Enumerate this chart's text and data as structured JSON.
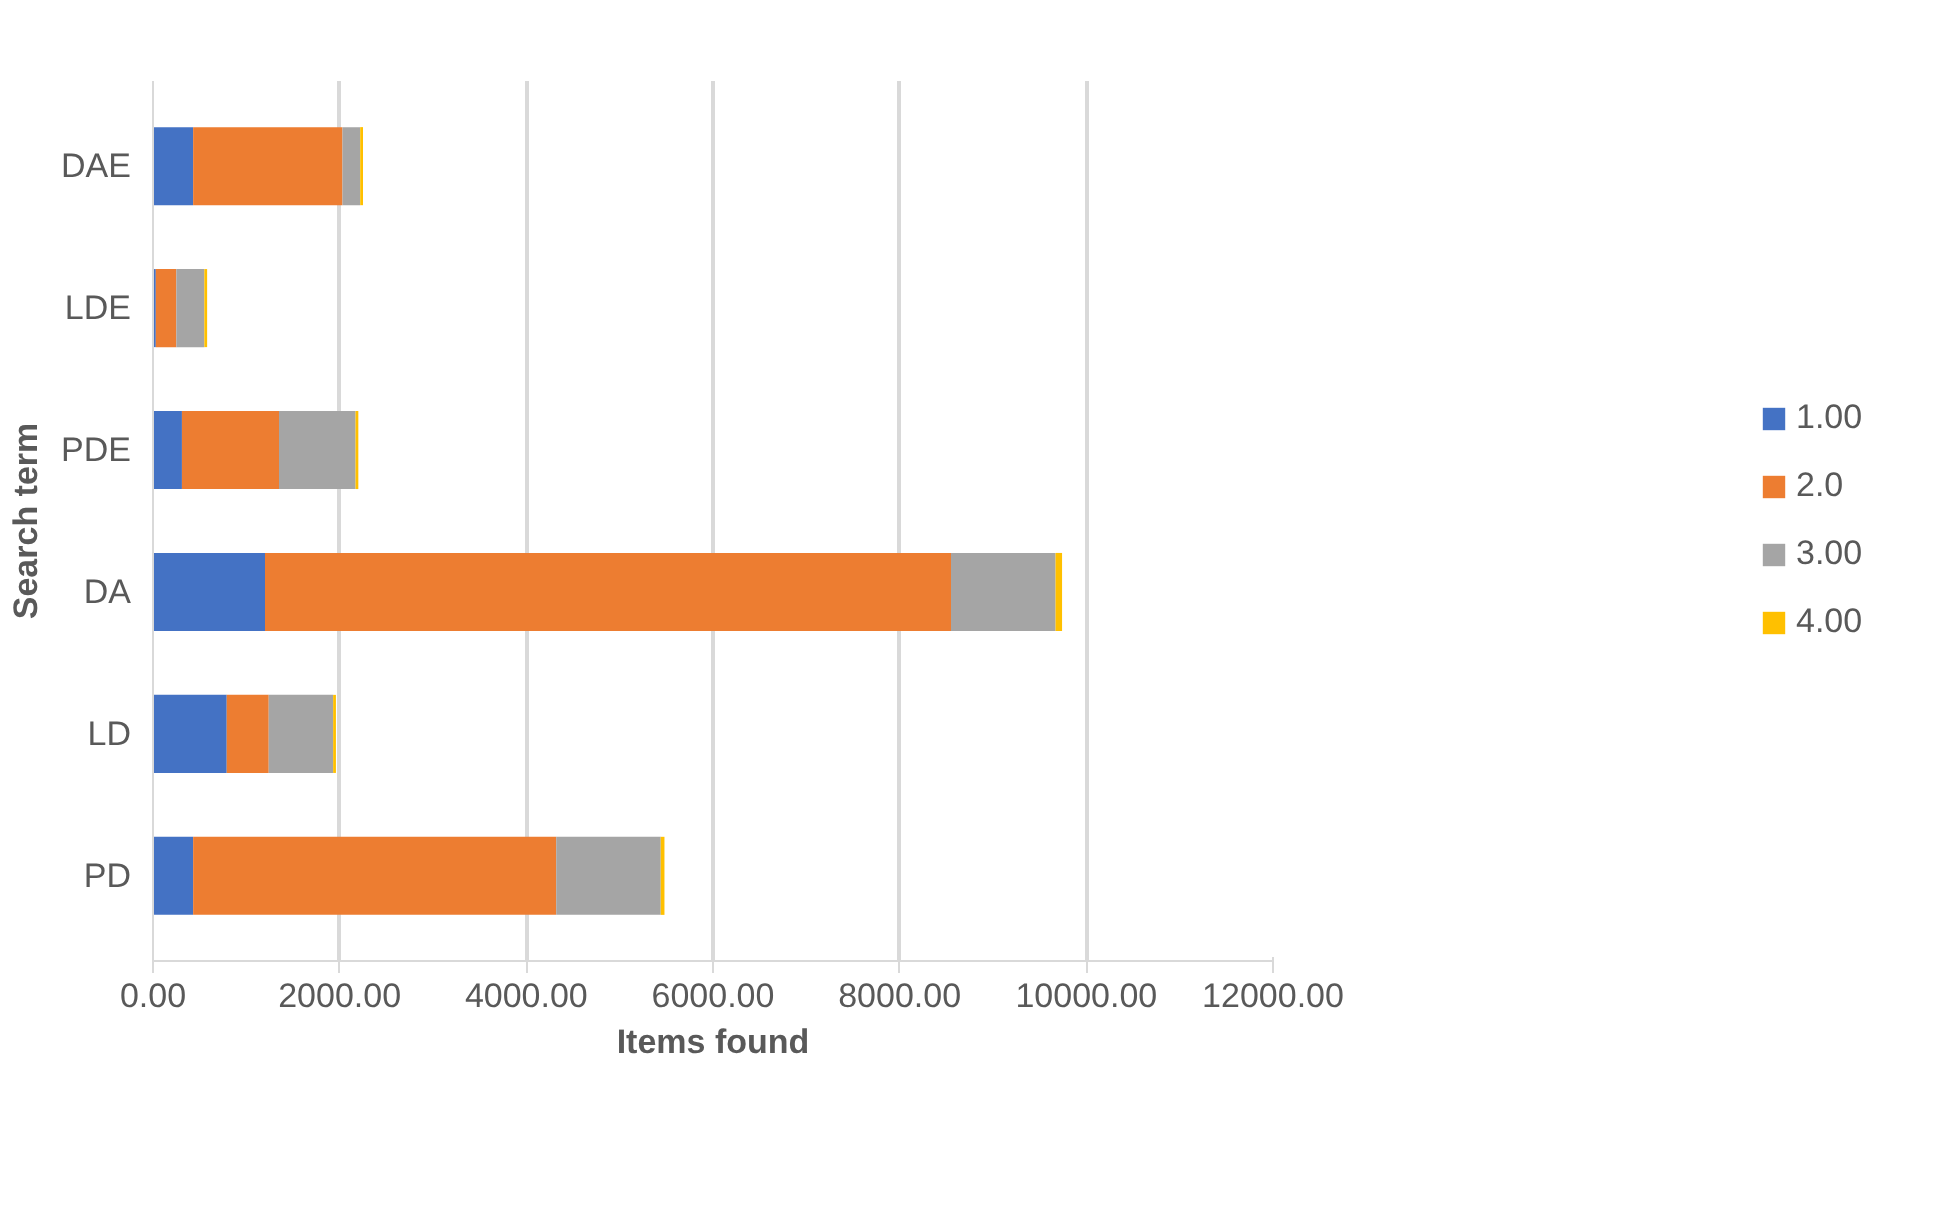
{
  "chart_data": {
    "type": "bar",
    "orientation": "horizontal",
    "stacked": true,
    "xlabel": "Items found",
    "ylabel": "Search term",
    "categories": [
      "DAE",
      "LDE",
      "PDE",
      "DA",
      "LD",
      "PD"
    ],
    "series": [
      {
        "name": "1.00",
        "color": "#4472c4",
        "values": [
          430,
          30,
          310,
          1200,
          790,
          430
        ]
      },
      {
        "name": "2.0",
        "color": "#ed7d31",
        "values": [
          1600,
          220,
          1040,
          7350,
          450,
          3890
        ]
      },
      {
        "name": "3.00",
        "color": "#a5a5a5",
        "values": [
          190,
          300,
          820,
          1120,
          690,
          1120
        ]
      },
      {
        "name": "4.00",
        "color": "#ffc000",
        "values": [
          30,
          30,
          30,
          70,
          30,
          40
        ]
      }
    ],
    "xlim": [
      0,
      12000
    ],
    "xticks": [
      {
        "value": 0,
        "label": "0.00"
      },
      {
        "value": 2000,
        "label": "2000.00"
      },
      {
        "value": 4000,
        "label": "4000.00"
      },
      {
        "value": 6000,
        "label": "6000.00"
      },
      {
        "value": 8000,
        "label": "8000.00"
      },
      {
        "value": 10000,
        "label": "10000.00"
      },
      {
        "value": 12000,
        "label": "12000.00"
      }
    ],
    "grid": "x",
    "legend": "right"
  }
}
